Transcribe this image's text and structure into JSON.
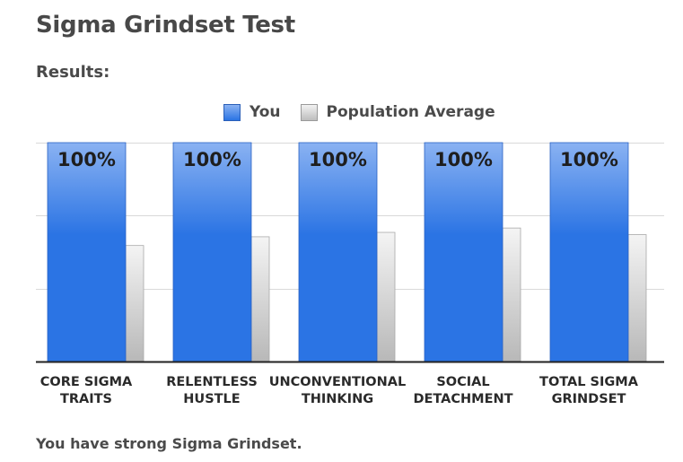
{
  "page": {
    "title": "Sigma Grindset Test",
    "results_label": "Results:",
    "summary": "You have strong Sigma Grindset."
  },
  "legend": {
    "you": "You",
    "average": "Population Average"
  },
  "colors": {
    "you_top": "#8ab2f2",
    "you_bottom": "#2b74e4",
    "avg_top": "#f4f4f4",
    "avg_bottom": "#b8b8b8",
    "grid": "#d9d9d9",
    "axis": "#222222"
  },
  "chart_data": {
    "type": "bar",
    "categories": [
      [
        "CORE SIGMA",
        "TRAITS"
      ],
      [
        "RELENTLESS",
        "HUSTLE"
      ],
      [
        "UNCONVENTIONAL",
        "THINKING"
      ],
      [
        "SOCIAL",
        "DETACHMENT"
      ],
      [
        "TOTAL SIGMA",
        "GRINDSET"
      ]
    ],
    "series": [
      {
        "name": "You",
        "values": [
          100,
          100,
          100,
          100,
          100
        ]
      },
      {
        "name": "Population Average",
        "values": [
          53,
          57,
          59,
          61,
          58
        ]
      }
    ],
    "data_labels": [
      "100%",
      "100%",
      "100%",
      "100%",
      "100%"
    ],
    "ylim": [
      0,
      100
    ],
    "gridlines": [
      33.3,
      66.7,
      100
    ],
    "grid": true,
    "legend_position": "top-center"
  }
}
